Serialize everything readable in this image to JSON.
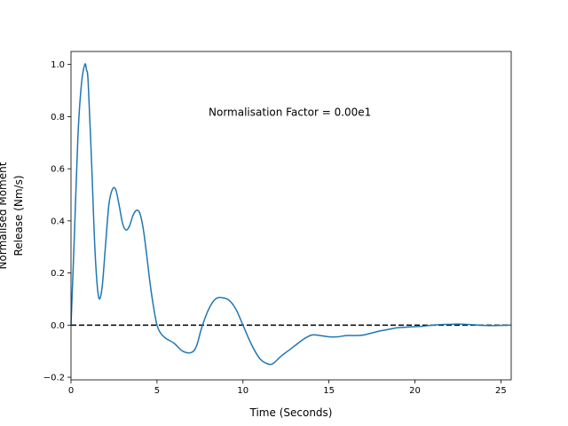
{
  "chart_data": {
    "type": "line",
    "title": "",
    "xlabel": "Time (Seconds)",
    "ylabel_lines": [
      "Normalised Moment",
      "Release (Nm/s)"
    ],
    "xlim": [
      0,
      25.6
    ],
    "ylim": [
      -0.21,
      1.05
    ],
    "xticks": [
      0,
      5,
      10,
      15,
      20,
      25
    ],
    "yticks": [
      -0.2,
      0.0,
      0.2,
      0.4,
      0.6,
      0.8,
      1.0
    ],
    "ytick_labels": [
      "−0.2",
      "0.0",
      "0.2",
      "0.4",
      "0.6",
      "0.8",
      "1.0"
    ],
    "grid": false,
    "annotation": {
      "text": "Normalisation Factor = 0.00e1",
      "x": 8.0,
      "y": 0.8
    },
    "reference_line": {
      "y": 0.0,
      "style": "dashed",
      "color": "#000000"
    },
    "series": [
      {
        "color": "#1f77b4",
        "x": [
          0.0,
          0.2,
          0.4,
          0.6,
          0.8,
          0.9,
          1.0,
          1.2,
          1.4,
          1.6,
          1.8,
          2.0,
          2.2,
          2.4,
          2.6,
          2.8,
          3.0,
          3.2,
          3.4,
          3.6,
          3.8,
          4.0,
          4.2,
          4.4,
          4.6,
          4.8,
          5.0,
          5.2,
          5.5,
          6.0,
          6.5,
          7.0,
          7.3,
          7.6,
          8.0,
          8.4,
          8.8,
          9.2,
          9.6,
          10.0,
          10.5,
          11.0,
          11.5,
          11.8,
          12.2,
          12.6,
          13.0,
          13.5,
          14.0,
          14.5,
          15.0,
          15.5,
          16.0,
          16.5,
          17.0,
          17.5,
          18.0,
          18.5,
          19.0,
          19.5,
          20.0,
          20.5,
          21.0,
          21.5,
          22.0,
          22.5,
          23.0,
          23.5,
          24.0,
          24.5,
          25.0,
          25.6
        ],
        "y": [
          0.0,
          0.35,
          0.72,
          0.92,
          1.0,
          0.98,
          0.93,
          0.62,
          0.28,
          0.11,
          0.14,
          0.3,
          0.46,
          0.52,
          0.52,
          0.46,
          0.39,
          0.365,
          0.38,
          0.42,
          0.44,
          0.43,
          0.37,
          0.27,
          0.16,
          0.07,
          0.0,
          -0.03,
          -0.05,
          -0.07,
          -0.1,
          -0.105,
          -0.08,
          -0.01,
          0.06,
          0.1,
          0.105,
          0.095,
          0.06,
          0.0,
          -0.075,
          -0.13,
          -0.15,
          -0.145,
          -0.12,
          -0.1,
          -0.08,
          -0.055,
          -0.038,
          -0.04,
          -0.045,
          -0.045,
          -0.04,
          -0.04,
          -0.038,
          -0.03,
          -0.022,
          -0.016,
          -0.01,
          -0.008,
          -0.006,
          -0.004,
          0.0,
          0.002,
          0.003,
          0.004,
          0.003,
          0.001,
          -0.001,
          -0.002,
          -0.001,
          0.0
        ]
      }
    ]
  }
}
